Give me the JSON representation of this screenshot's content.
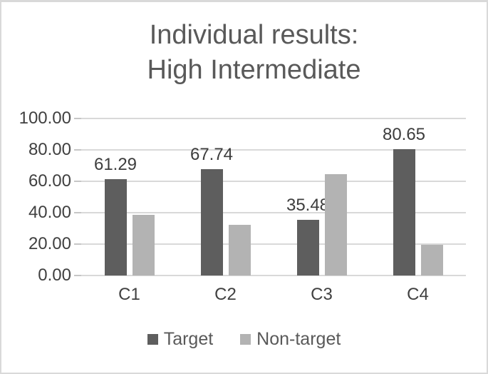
{
  "title": {
    "line1": "Individual results:",
    "line2": "High Intermediate"
  },
  "chart_data": {
    "type": "bar",
    "title": "Individual results: High Intermediate",
    "categories": [
      "C1",
      "C2",
      "C3",
      "C4"
    ],
    "series": [
      {
        "name": "Target",
        "color": "#5e5e5e",
        "values": [
          61.29,
          67.74,
          35.48,
          80.65
        ],
        "data_labels": [
          "61.29",
          "67.74",
          "35.48",
          "80.65"
        ],
        "show_data_labels": true
      },
      {
        "name": "Non-target",
        "color": "#b3b3b3",
        "values": [
          38.71,
          32.26,
          64.52,
          19.35
        ],
        "data_labels": null,
        "show_data_labels": false
      }
    ],
    "ylim": [
      0,
      100
    ],
    "yticks": [
      {
        "value": 100,
        "label": "100.00"
      },
      {
        "value": 80,
        "label": "80.00"
      },
      {
        "value": 60,
        "label": "60.00"
      },
      {
        "value": 40,
        "label": "40.00"
      },
      {
        "value": 20,
        "label": "20.00"
      },
      {
        "value": 0,
        "label": "0.00"
      }
    ],
    "grid": true,
    "legend_position": "bottom",
    "xlabel": "",
    "ylabel": ""
  },
  "colors": {
    "bar_target": "#5e5e5e",
    "bar_non_target": "#b3b3b3",
    "gridline": "#d9d9d9",
    "tick": "#c6c6c6",
    "title_text": "#595959",
    "axis_text": "#404040",
    "data_label_text": "#3d3d3d",
    "legend_text": "#595959",
    "border": "#d9d9d9",
    "background": "#ffffff"
  }
}
